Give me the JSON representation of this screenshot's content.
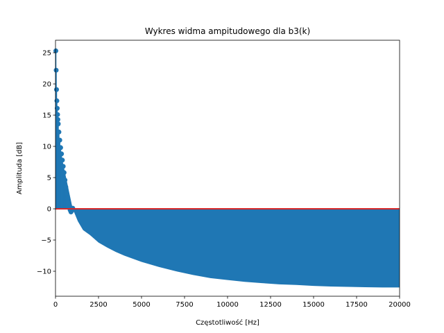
{
  "chart_data": {
    "type": "stem",
    "title": "Wykres widma ampitudowego dla b3(k)",
    "xlabel": "Częstotliwość [Hz]",
    "ylabel": "Amplituda [dB]",
    "xlim": [
      0,
      20000
    ],
    "ylim": [
      -14,
      27
    ],
    "xticks": [
      0,
      2500,
      5000,
      7500,
      10000,
      12500,
      15000,
      17500,
      20000
    ],
    "yticks": [
      -10,
      -5,
      0,
      5,
      10,
      15,
      20,
      25
    ],
    "ytick_labels": [
      "−10",
      "−5",
      "0",
      "5",
      "10",
      "15",
      "20",
      "25"
    ],
    "baseline": 0,
    "colors": {
      "stem": "#1f77b4",
      "marker": "#1f77b4",
      "baseline": "#d62728"
    },
    "marker_points": [
      {
        "x": 20,
        "y": 25.3
      },
      {
        "x": 40,
        "y": 22.2
      },
      {
        "x": 60,
        "y": 19.1
      },
      {
        "x": 80,
        "y": 17.3
      },
      {
        "x": 100,
        "y": 16.1
      },
      {
        "x": 120,
        "y": 15.1
      },
      {
        "x": 140,
        "y": 14.3
      },
      {
        "x": 160,
        "y": 13.6
      },
      {
        "x": 200,
        "y": 12.3
      },
      {
        "x": 250,
        "y": 11.0
      },
      {
        "x": 300,
        "y": 9.8
      },
      {
        "x": 350,
        "y": 8.8
      },
      {
        "x": 400,
        "y": 7.8
      },
      {
        "x": 450,
        "y": 6.8
      },
      {
        "x": 500,
        "y": 5.8
      },
      {
        "x": 550,
        "y": 4.6
      },
      {
        "x": 600,
        "y": 3.5
      },
      {
        "x": 650,
        "y": 2.5
      },
      {
        "x": 700,
        "y": 1.7
      },
      {
        "x": 750,
        "y": 1.0
      },
      {
        "x": 800,
        "y": 0.4
      },
      {
        "x": 850,
        "y": -0.2
      },
      {
        "x": 900,
        "y": -0.5
      },
      {
        "x": 950,
        "y": -0.3
      },
      {
        "x": 1000,
        "y": 0.1
      }
    ],
    "envelope": [
      {
        "x": 0,
        "y": 13.0
      },
      {
        "x": 1000,
        "y": 0.0
      },
      {
        "x": 1300,
        "y": -2.0
      },
      {
        "x": 1600,
        "y": -3.4
      },
      {
        "x": 2000,
        "y": -4.2
      },
      {
        "x": 2500,
        "y": -5.4
      },
      {
        "x": 3000,
        "y": -6.2
      },
      {
        "x": 3500,
        "y": -6.9
      },
      {
        "x": 4000,
        "y": -7.5
      },
      {
        "x": 5000,
        "y": -8.5
      },
      {
        "x": 6000,
        "y": -9.3
      },
      {
        "x": 7000,
        "y": -10.0
      },
      {
        "x": 8000,
        "y": -10.6
      },
      {
        "x": 9000,
        "y": -11.1
      },
      {
        "x": 10000,
        "y": -11.4
      },
      {
        "x": 11000,
        "y": -11.7
      },
      {
        "x": 12000,
        "y": -11.9
      },
      {
        "x": 13000,
        "y": -12.1
      },
      {
        "x": 14000,
        "y": -12.2
      },
      {
        "x": 15000,
        "y": -12.35
      },
      {
        "x": 16000,
        "y": -12.45
      },
      {
        "x": 17000,
        "y": -12.5
      },
      {
        "x": 18000,
        "y": -12.55
      },
      {
        "x": 19000,
        "y": -12.6
      },
      {
        "x": 20000,
        "y": -12.6
      }
    ]
  }
}
